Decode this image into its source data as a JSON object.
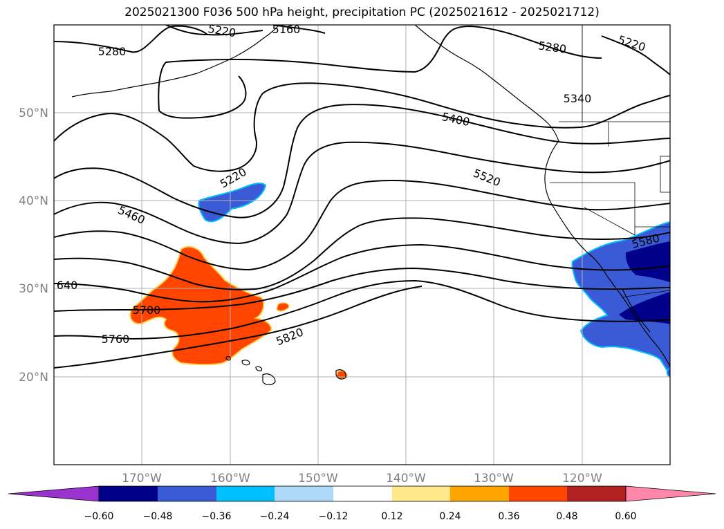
{
  "title": "2025021300 F036 500 hPa height, precipitation PC (2025021612 - 2025021712)",
  "map": {
    "lat_labels": [
      "50°N",
      "40°N",
      "30°N",
      "20°N"
    ],
    "lon_labels": [
      "170°W",
      "160°W",
      "150°W",
      "140°W",
      "130°W",
      "120°W"
    ],
    "contour_labels": [
      "5220",
      "5160",
      "5280",
      "5280",
      "5220",
      "5340",
      "5400",
      "5220",
      "5520",
      "5460",
      "5580",
      "640",
      "5700",
      "5760",
      "5820"
    ]
  },
  "colorbar": {
    "ticks": [
      "−0.60",
      "−0.48",
      "−0.36",
      "−0.24",
      "−0.12",
      "0.12",
      "0.24",
      "0.36",
      "0.48",
      "0.60"
    ],
    "colors": [
      "#9a32cd",
      "#00008b",
      "#3b5bd6",
      "#00bfff",
      "#add8f6",
      "#ffffff",
      "#ffe98a",
      "#ffa500",
      "#ff4500",
      "#b22222",
      "#ff88aa"
    ]
  }
}
